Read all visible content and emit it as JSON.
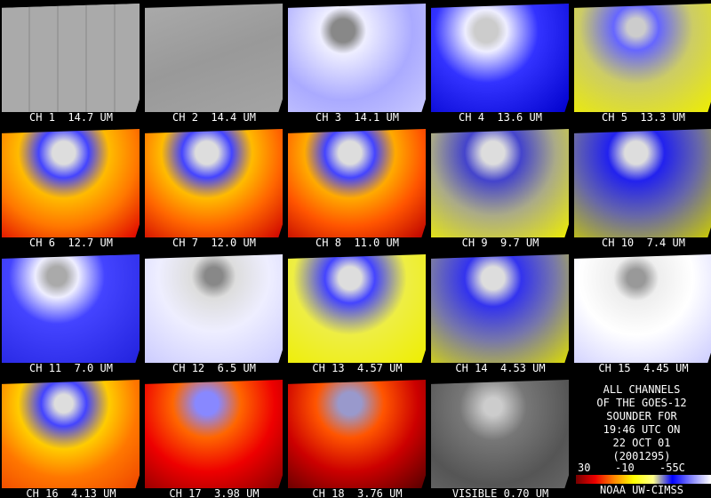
{
  "panels": [
    {
      "label": "CH 1  14.7 UM"
    },
    {
      "label": "CH 2  14.4 UM"
    },
    {
      "label": "CH 3  14.1 UM"
    },
    {
      "label": "CH 4  13.6 UM"
    },
    {
      "label": "CH 5  13.3 UM"
    },
    {
      "label": "CH 6  12.7 UM"
    },
    {
      "label": "CH 7  12.0 UM"
    },
    {
      "label": "CH 8  11.0 UM"
    },
    {
      "label": "CH 9  9.7 UM"
    },
    {
      "label": "CH 10  7.4 UM"
    },
    {
      "label": "CH 11  7.0 UM"
    },
    {
      "label": "CH 12  6.5 UM"
    },
    {
      "label": "CH 13  4.57 UM"
    },
    {
      "label": "CH 14  4.53 UM"
    },
    {
      "label": "CH 15  4.45 UM"
    },
    {
      "label": "CH 16  4.13 UM"
    },
    {
      "label": "CH 17  3.98 UM"
    },
    {
      "label": "CH 18  3.76 UM"
    },
    {
      "label": "VISIBLE 0.70 UM"
    }
  ],
  "info": {
    "lines": [
      "ALL CHANNELS",
      "OF THE GOES-12",
      "SOUNDER FOR",
      "19:46 UTC ON",
      "22 OCT 01",
      "(2001295)"
    ],
    "scale_labels": [
      "30",
      "-10",
      "-55C"
    ],
    "credit": "NOAA UW-CIMSS"
  }
}
